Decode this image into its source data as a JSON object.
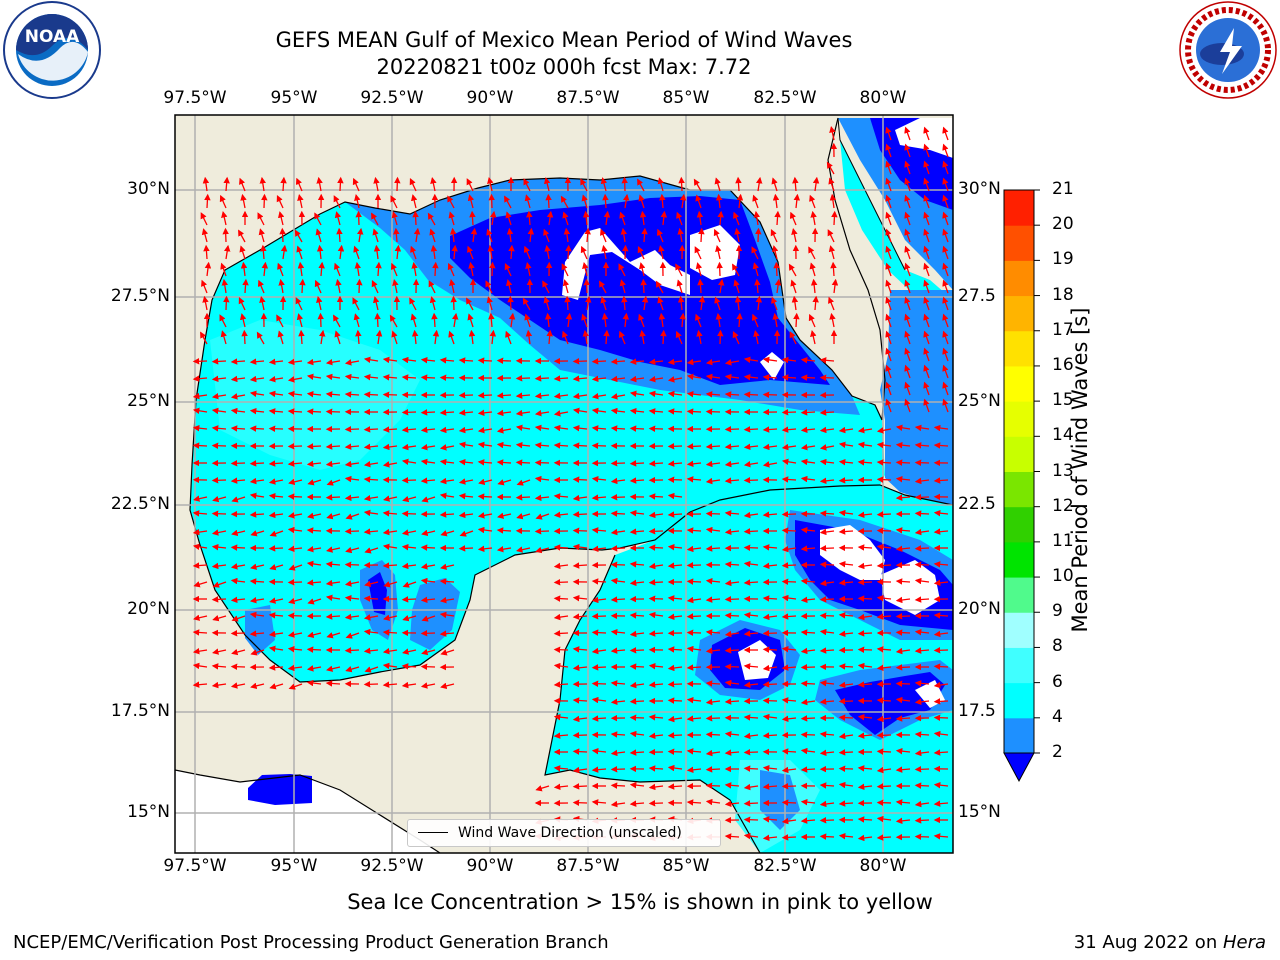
{
  "title": {
    "line1": "GEFS MEAN Gulf of Mexico Mean Period of Wind Waves",
    "line2": "20220821 t00z 000h fcst   Max: 7.72"
  },
  "map": {
    "lon_labels": [
      "97.5°W",
      "95°W",
      "92.5°W",
      "90°W",
      "87.5°W",
      "85°W",
      "82.5°W",
      "80°W"
    ],
    "lat_labels": [
      "30°N",
      "27.5°N",
      "25°N",
      "22.5°N",
      "20°N",
      "17.5°N",
      "15°N"
    ],
    "lat_labels_right": [
      "30°N",
      "27.5",
      "25°N",
      "22.5",
      "20°N",
      "17.5",
      "15°N"
    ],
    "colors": {
      "land": "#efecdc",
      "no_data": "#ffffff",
      "ocean_light": "#00ffff",
      "ocean_mid": "#1e90ff",
      "ocean_dark": "#0000ff",
      "arrows": "#ff0000",
      "grid": "#b0b0b0"
    },
    "legend_label": "Wind Wave Direction (unscaled)"
  },
  "colorbar": {
    "label": "Mean Period of Wind Waves [s]",
    "ticks": [
      "2",
      "4",
      "6",
      "8",
      "9",
      "10",
      "11",
      "12",
      "13",
      "14",
      "15",
      "16",
      "17",
      "18",
      "19",
      "20",
      "21"
    ],
    "colors": [
      "#1e90ff",
      "#00ffff",
      "#40ffff",
      "#a0ffff",
      "#50fa8c",
      "#00e400",
      "#30d000",
      "#7ae600",
      "#c8ff00",
      "#e6ff00",
      "#ffff00",
      "#ffe100",
      "#ffb400",
      "#ff8c00",
      "#ff5000",
      "#ff2000"
    ],
    "under_color": "#0000ff"
  },
  "caption": "Sea Ice Concentration > 15% is shown in pink to yellow",
  "footer": {
    "left": "NCEP/EMC/Verification Post Processing Product Generation Branch",
    "right_prefix": "31 Aug 2022 on ",
    "right_italic": "Hera"
  },
  "logos": {
    "noaa": "NOAA",
    "noaa_ring": "NATIONAL OCEANIC AND ATMOSPHERIC ADMINISTRATION · U.S. DEPARTMENT OF COMMERCE",
    "nws_ring": "NATIONAL WEATHER SERVICE"
  }
}
